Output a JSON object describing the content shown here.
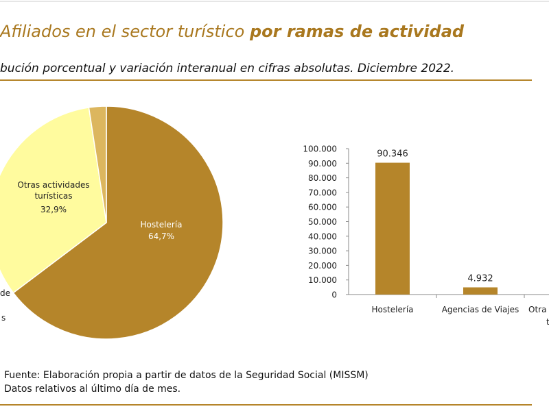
{
  "header": {
    "title_regular": "Afiliados en el sector turístico ",
    "title_bold": "por ramas de actividad",
    "subtitle": "bución porcentual y variación interanual en cifras absolutas. Diciembre 2022."
  },
  "chart_data": [
    {
      "type": "pie",
      "categories": [
        "Hostelería",
        "Otras actividades turísticas",
        null
      ],
      "values": [
        64.7,
        32.9,
        2.4
      ],
      "value_labels": [
        "64,7%",
        "32,9%",
        null
      ],
      "colors": [
        "#b5852a",
        "#fffb9e",
        "#dcb65e"
      ],
      "cropped_label_fragments": [
        "de",
        "s"
      ]
    },
    {
      "type": "bar",
      "categories": [
        "Hostelería",
        "Agencias de Viajes",
        "Otra"
      ],
      "cropped_label_fragment": "t",
      "values": [
        90346,
        4932,
        null
      ],
      "value_labels": [
        "90.346",
        "4.932",
        null
      ],
      "color": "#b5852a",
      "ylim": [
        0,
        100000
      ],
      "yticks": [
        {
          "value": 0,
          "label": "0"
        },
        {
          "value": 10000,
          "label": "10.000"
        },
        {
          "value": 20000,
          "label": "20.000"
        },
        {
          "value": 30000,
          "label": "30.000"
        },
        {
          "value": 40000,
          "label": "40.000"
        },
        {
          "value": 50000,
          "label": "50.000"
        },
        {
          "value": 60000,
          "label": "60.000"
        },
        {
          "value": 70000,
          "label": "70.000"
        },
        {
          "value": 80000,
          "label": "80.000"
        },
        {
          "value": 90000,
          "label": "90.000"
        },
        {
          "value": 100000,
          "label": "100.000"
        }
      ]
    }
  ],
  "footer": {
    "notes": [
      "Fuente: Elaboración propia a partir de datos de la Seguridad Social (MISSM)",
      "Datos relativos al último día de mes."
    ]
  }
}
